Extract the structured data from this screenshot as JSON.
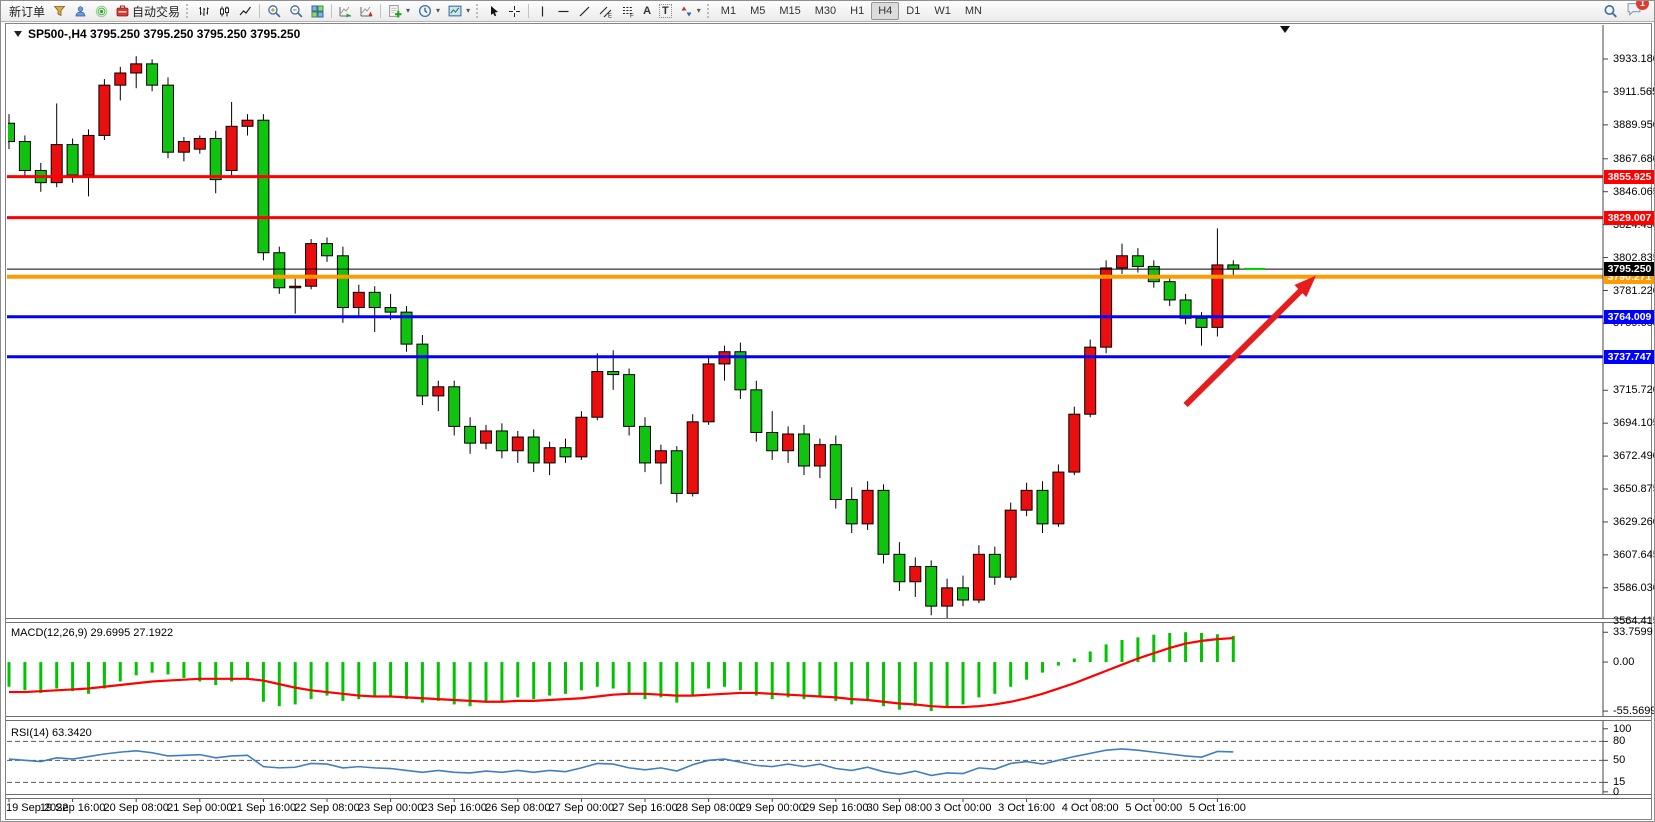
{
  "window": {
    "symbol_header": "SP500-,H4  3795.250 3795.250 3795.250 3795.250"
  },
  "toolbar": {
    "new_order": "新订单",
    "autotrade": "自动交易",
    "tool_letter_a": "A",
    "tool_letter_t": "T",
    "timeframes": [
      "M1",
      "M5",
      "M15",
      "M30",
      "H1",
      "H4",
      "D1",
      "W1",
      "MN"
    ],
    "active_timeframe": "H4",
    "notification_badge": "1"
  },
  "chart_data": {
    "type": "candlestick",
    "symbol": "SP500-",
    "timeframe": "H4",
    "grid": "off",
    "price_max": 3945.0,
    "price_min": 3566.2,
    "price_axis_ticks": [
      "3933.180",
      "3911.565",
      "3889.950",
      "3867.680",
      "3846.065",
      "3824.450",
      "3802.835",
      "3781.220",
      "3759.605",
      "3715.720",
      "3694.105",
      "3672.490",
      "3650.875",
      "3629.260",
      "3607.645",
      "3586.030",
      "3564.415"
    ],
    "time_labels": [
      "19 Sep 2022",
      "19 Sep 16:00",
      "20 Sep 08:00",
      "21 Sep 00:00",
      "21 Sep 16:00",
      "22 Sep 08:00",
      "23 Sep 00:00",
      "23 Sep 16:00",
      "26 Sep 08:00",
      "27 Sep 00:00",
      "27 Sep 16:00",
      "28 Sep 08:00",
      "29 Sep 00:00",
      "29 Sep 16:00",
      "30 Sep 08:00",
      "3 Oct 00:00",
      "3 Oct 16:00",
      "4 Oct 08:00",
      "5 Oct 00:00",
      "5 Oct 16:00"
    ],
    "bull_color": "#ea0e0e",
    "bear_color": "#0fc30f",
    "outline_color": "#000000",
    "quotes": [
      [
        3891,
        3897,
        3874,
        3879
      ],
      [
        3879,
        3883,
        3855,
        3860
      ],
      [
        3860,
        3865,
        3846,
        3852
      ],
      [
        3852,
        3904,
        3849,
        3877
      ],
      [
        3877,
        3881,
        3852,
        3857
      ],
      [
        3857,
        3887,
        3843,
        3883
      ],
      [
        3883,
        3920,
        3880,
        3916
      ],
      [
        3916,
        3928,
        3906,
        3924
      ],
      [
        3924,
        3935,
        3914,
        3930
      ],
      [
        3930,
        3933,
        3912,
        3916
      ],
      [
        3916,
        3921,
        3868,
        3872
      ],
      [
        3872,
        3882,
        3866,
        3879
      ],
      [
        3874,
        3883,
        3871,
        3881
      ],
      [
        3881,
        3886,
        3845,
        3854
      ],
      [
        3860,
        3905,
        3856,
        3889
      ],
      [
        3889,
        3897,
        3883,
        3893
      ],
      [
        3893,
        3897,
        3801,
        3806
      ],
      [
        3806,
        3810,
        3779,
        3783
      ],
      [
        3783,
        3789,
        3766,
        3784
      ],
      [
        3784,
        3815,
        3782,
        3812
      ],
      [
        3812,
        3816,
        3800,
        3804
      ],
      [
        3804,
        3810,
        3760,
        3770
      ],
      [
        3770,
        3785,
        3764,
        3780
      ],
      [
        3780,
        3784,
        3754,
        3770
      ],
      [
        3770,
        3779,
        3762,
        3767
      ],
      [
        3767,
        3771,
        3741,
        3746
      ],
      [
        3746,
        3752,
        3706,
        3712
      ],
      [
        3712,
        3722,
        3702,
        3718
      ],
      [
        3718,
        3722,
        3686,
        3692
      ],
      [
        3692,
        3698,
        3674,
        3681
      ],
      [
        3681,
        3693,
        3677,
        3689
      ],
      [
        3689,
        3694,
        3671,
        3676
      ],
      [
        3676,
        3689,
        3668,
        3685
      ],
      [
        3685,
        3690,
        3662,
        3668
      ],
      [
        3668,
        3682,
        3660,
        3678
      ],
      [
        3678,
        3684,
        3668,
        3672
      ],
      [
        3672,
        3702,
        3670,
        3698
      ],
      [
        3698,
        3740,
        3696,
        3728
      ],
      [
        3728,
        3742,
        3716,
        3726
      ],
      [
        3726,
        3730,
        3686,
        3692
      ],
      [
        3692,
        3698,
        3662,
        3668
      ],
      [
        3668,
        3680,
        3654,
        3676
      ],
      [
        3676,
        3679,
        3642,
        3648
      ],
      [
        3648,
        3700,
        3646,
        3695
      ],
      [
        3695,
        3738,
        3693,
        3733
      ],
      [
        3733,
        3745,
        3722,
        3741
      ],
      [
        3741,
        3747,
        3710,
        3716
      ],
      [
        3716,
        3722,
        3682,
        3688
      ],
      [
        3688,
        3702,
        3670,
        3676
      ],
      [
        3676,
        3692,
        3668,
        3687
      ],
      [
        3687,
        3693,
        3660,
        3666
      ],
      [
        3666,
        3684,
        3658,
        3680
      ],
      [
        3680,
        3686,
        3638,
        3644
      ],
      [
        3644,
        3652,
        3622,
        3628
      ],
      [
        3628,
        3656,
        3624,
        3650
      ],
      [
        3650,
        3654,
        3602,
        3608
      ],
      [
        3608,
        3616,
        3584,
        3590
      ],
      [
        3590,
        3606,
        3580,
        3600
      ],
      [
        3600,
        3604,
        3568,
        3574
      ],
      [
        3574,
        3592,
        3566,
        3586
      ],
      [
        3586,
        3594,
        3574,
        3578
      ],
      [
        3578,
        3614,
        3576,
        3608
      ],
      [
        3608,
        3613,
        3588,
        3593
      ],
      [
        3593,
        3642,
        3591,
        3637
      ],
      [
        3637,
        3655,
        3633,
        3650
      ],
      [
        3650,
        3656,
        3622,
        3628
      ],
      [
        3628,
        3667,
        3626,
        3662
      ],
      [
        3662,
        3705,
        3660,
        3700
      ],
      [
        3700,
        3749,
        3698,
        3744
      ],
      [
        3744,
        3801,
        3740,
        3796
      ],
      [
        3796,
        3812,
        3792,
        3804
      ],
      [
        3804,
        3809,
        3793,
        3797
      ],
      [
        3797,
        3801,
        3783,
        3787
      ],
      [
        3787,
        3791,
        3771,
        3775
      ],
      [
        3775,
        3779,
        3759,
        3763
      ],
      [
        3763,
        3767,
        3745,
        3757
      ],
      [
        3757,
        3822,
        3751,
        3798
      ],
      [
        3798,
        3801,
        3791,
        3795.25
      ]
    ],
    "hlines": [
      {
        "price": 3855.925,
        "label": "3855.925",
        "color": "#ff0000",
        "badge": "#ff0000",
        "width": 3
      },
      {
        "price": 3829.007,
        "label": "3829.007",
        "color": "#ff0000",
        "badge": "#ff0000",
        "width": 3
      },
      {
        "price": 3790.271,
        "label": "3790.271",
        "color": "#ff9a00",
        "badge": "#ff9a00",
        "width": 4
      },
      {
        "price": 3764.009,
        "label": "3764.009",
        "color": "#0000ff",
        "badge": "#0000ff",
        "width": 3
      },
      {
        "price": 3737.747,
        "label": "3737.747",
        "color": "#0000ff",
        "badge": "#0000ff",
        "width": 3
      }
    ],
    "current_price": {
      "price": 3795.25,
      "label": "3795.250",
      "line_color": "#000000",
      "badge": "#000000"
    },
    "bid_dash": {
      "price": 3795.4,
      "color": "#00cc00"
    },
    "arrow": {
      "b1": 74.0,
      "p1": 3706,
      "b2": 82.2,
      "p2": 3791,
      "color": "#e81c1c"
    },
    "macd": {
      "label": "MACD(12,26,9)",
      "current": "29.6995 27.1922",
      "max": 42,
      "min": -60,
      "hist_color": "#00c400",
      "signal_color": "#ff0000",
      "ticks": [
        {
          "label": "33.7599",
          "value": 33.7599
        },
        {
          "label": "0.00",
          "value": 0
        },
        {
          "label": "-55.5699",
          "value": -55.5699
        }
      ],
      "histogram": [
        -28,
        -32,
        -35,
        -30,
        -33,
        -36,
        -30,
        -22,
        -15,
        -12,
        -14,
        -18,
        -22,
        -26,
        -22,
        -20,
        -45,
        -50,
        -48,
        -42,
        -38,
        -44,
        -42,
        -40,
        -38,
        -42,
        -46,
        -44,
        -48,
        -50,
        -46,
        -44,
        -40,
        -42,
        -38,
        -36,
        -32,
        -28,
        -30,
        -36,
        -42,
        -40,
        -46,
        -38,
        -30,
        -28,
        -32,
        -38,
        -42,
        -40,
        -42,
        -38,
        -44,
        -48,
        -44,
        -50,
        -54,
        -50,
        -55.5,
        -52,
        -48,
        -40,
        -36,
        -28,
        -20,
        -12,
        -4,
        4,
        12,
        20,
        25,
        28,
        31,
        33,
        33.8,
        33,
        31.5,
        29.7
      ],
      "signal": [
        -34,
        -34,
        -33,
        -32,
        -31,
        -30,
        -28,
        -26,
        -24,
        -22,
        -21,
        -20,
        -19,
        -19,
        -19,
        -19,
        -21,
        -25,
        -29,
        -32,
        -34,
        -36,
        -38,
        -39,
        -39,
        -40,
        -41,
        -42,
        -43,
        -44,
        -45,
        -45,
        -44,
        -44,
        -43,
        -42,
        -41,
        -39,
        -37,
        -36,
        -36,
        -37,
        -38,
        -38,
        -37,
        -36,
        -35,
        -35,
        -36,
        -37,
        -38,
        -39,
        -40,
        -42,
        -43,
        -45,
        -47,
        -48,
        -50,
        -51,
        -51,
        -50,
        -48,
        -45,
        -41,
        -36,
        -30,
        -24,
        -17,
        -10,
        -3,
        4,
        10,
        16,
        21,
        24,
        26,
        27.2
      ]
    },
    "rsi": {
      "label": "RSI(14)",
      "current": "63.3420",
      "max": 106,
      "min": -5,
      "line_color": "#3f7fc1",
      "level_color": "#5a5a5a",
      "ticks": [
        {
          "label": "100",
          "value": 100
        },
        {
          "label": "80",
          "value": 80
        },
        {
          "label": "50",
          "value": 50
        },
        {
          "label": "15",
          "value": 15
        },
        {
          "label": "0",
          "value": 0
        }
      ],
      "levels": [
        80,
        50,
        15
      ],
      "values": [
        52,
        50,
        48,
        54,
        52,
        56,
        60,
        63,
        65,
        62,
        57,
        58,
        59,
        54,
        57,
        58,
        40,
        38,
        39,
        45,
        44,
        38,
        40,
        38,
        37,
        34,
        31,
        34,
        31,
        30,
        33,
        31,
        34,
        31,
        34,
        32,
        38,
        45,
        44,
        38,
        35,
        38,
        33,
        43,
        50,
        52,
        47,
        42,
        40,
        44,
        40,
        44,
        37,
        34,
        39,
        32,
        28,
        33,
        26,
        30,
        29,
        38,
        36,
        45,
        48,
        44,
        50,
        56,
        61,
        66,
        68,
        66,
        63,
        60,
        57,
        55,
        64,
        63.34
      ]
    }
  }
}
